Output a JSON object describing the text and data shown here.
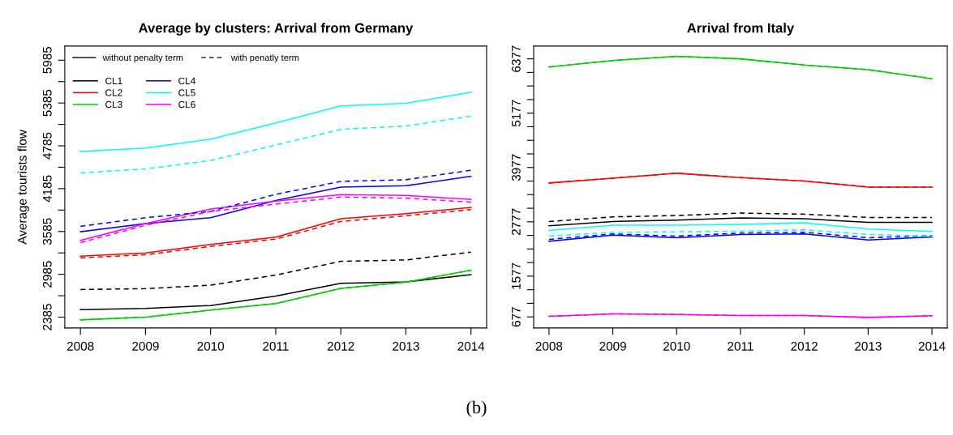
{
  "chart_data": [
    {
      "type": "line",
      "title": "Average by clusters: Arrival from Germany",
      "ylabel": "Average tourists flow",
      "x": [
        2008,
        2009,
        2010,
        2011,
        2012,
        2013,
        2014
      ],
      "xlim": [
        2007.76,
        2014.24
      ],
      "xticks": [
        2008,
        2009,
        2010,
        2011,
        2012,
        2013,
        2014
      ],
      "ylim": [
        2233,
        6182
      ],
      "yticks": [
        2385,
        {
          "value": 2685,
          "label": null
        },
        2985,
        {
          "value": 3285,
          "label": null
        },
        3585,
        {
          "value": 3885,
          "label": null
        },
        4185,
        {
          "value": 4485,
          "label": null
        },
        4785,
        {
          "value": 5085,
          "label": null
        },
        5385,
        {
          "value": 5685,
          "label": null
        },
        5985
      ],
      "grid": false,
      "legend": "top left",
      "marker": "none",
      "annotations": [
        "without penalty term",
        "with penatly term"
      ],
      "series": [
        {
          "name": "CL1",
          "color": "#000000",
          "line_style": "solid",
          "values": [
            2491,
            2506,
            2548,
            2681,
            2860,
            2879,
            2981
          ]
        },
        {
          "name": "CL2",
          "color": "#ff0000",
          "line_style": "solid",
          "values": [
            3239,
            3285,
            3403,
            3505,
            3763,
            3835,
            3923
          ]
        },
        {
          "name": "CL3",
          "color": "#00cd00",
          "line_style": "solid",
          "values": [
            2347,
            2385,
            2484,
            2575,
            2787,
            2875,
            3042
          ]
        },
        {
          "name": "CL4",
          "color": "#0000ff",
          "line_style": "solid",
          "values": [
            3581,
            3695,
            3778,
            4018,
            4207,
            4226,
            4359
          ]
        },
        {
          "name": "CL5",
          "color": "#00ffff",
          "line_style": "solid",
          "values": [
            4705,
            4754,
            4880,
            5107,
            5343,
            5381,
            5536
          ]
        },
        {
          "name": "CL6",
          "color": "#ff00ff",
          "line_style": "solid",
          "values": [
            3460,
            3695,
            3900,
            4010,
            4101,
            4090,
            4033
          ]
        },
        {
          "color": "#000000",
          "line_style": "dashed",
          "values": [
            2772,
            2784,
            2833,
            2974,
            3167,
            3186,
            3296
          ]
        },
        {
          "color": "#ff0000",
          "line_style": "dashed",
          "values": [
            3216,
            3258,
            3376,
            3479,
            3725,
            3805,
            3892
          ]
        },
        {
          "color": "#00cd00",
          "line_style": "dashed",
          "values": [
            2347,
            2385,
            2484,
            2575,
            2787,
            2875,
            3042
          ]
        },
        {
          "color": "#0000ff",
          "line_style": "dashed",
          "values": [
            3657,
            3778,
            3866,
            4105,
            4287,
            4310,
            4443
          ]
        },
        {
          "color": "#00ffff",
          "line_style": "dashed",
          "values": [
            4405,
            4462,
            4580,
            4796,
            5016,
            5062,
            5202
          ]
        },
        {
          "color": "#ff00ff",
          "line_style": "dashed",
          "values": [
            3429,
            3672,
            3866,
            3968,
            4067,
            4052,
            3995
          ]
        }
      ]
    },
    {
      "type": "line",
      "title": "Arrival from Italy",
      "x": [
        2008,
        2009,
        2010,
        2011,
        2012,
        2013,
        2014
      ],
      "xlim": [
        2007.76,
        2014.24
      ],
      "xticks": [
        2008,
        2009,
        2010,
        2011,
        2012,
        2013,
        2014
      ],
      "ylim": [
        432,
        6658
      ],
      "yticks": [
        677,
        {
          "value": 977,
          "label": null
        },
        {
          "value": 1277,
          "label": null
        },
        1577,
        {
          "value": 1877,
          "label": null
        },
        {
          "value": 2177,
          "label": null
        },
        {
          "value": 2477,
          "label": null
        },
        2777,
        {
          "value": 3077,
          "label": null
        },
        {
          "value": 3377,
          "label": null
        },
        {
          "value": 3677,
          "label": null
        },
        3977,
        {
          "value": 4277,
          "label": null
        },
        {
          "value": 4577,
          "label": null
        },
        {
          "value": 4877,
          "label": null
        },
        5177,
        {
          "value": 5477,
          "label": null
        },
        {
          "value": 5777,
          "label": null
        },
        {
          "value": 6077,
          "label": null
        },
        6377
      ],
      "grid": false,
      "marker": "none",
      "annotations": [
        "(b)"
      ],
      "series": [
        {
          "color": "#000000",
          "line_style": "solid",
          "values": [
            2689,
            2784,
            2814,
            2862,
            2844,
            2766,
            2766
          ]
        },
        {
          "color": "#ff0000",
          "line_style": "solid",
          "values": [
            3635,
            3742,
            3850,
            3754,
            3676,
            3545,
            3545
          ]
        },
        {
          "color": "#00cd00",
          "line_style": "solid",
          "values": [
            6197,
            6341,
            6431,
            6377,
            6239,
            6137,
            5940
          ]
        },
        {
          "color": "#0000ff",
          "line_style": "solid",
          "values": [
            2347,
            2485,
            2425,
            2497,
            2509,
            2377,
            2443
          ]
        },
        {
          "color": "#00ffff",
          "line_style": "solid",
          "values": [
            2587,
            2701,
            2701,
            2719,
            2754,
            2617,
            2563
          ]
        },
        {
          "color": "#ff00ff",
          "line_style": "solid",
          "values": [
            689,
            743,
            731,
            707,
            707,
            665,
            701
          ]
        },
        {
          "color": "#000000",
          "line_style": "dashed",
          "values": [
            2784,
            2886,
            2916,
            2970,
            2946,
            2874,
            2874
          ]
        },
        {
          "color": "#ff0000",
          "line_style": "dashed",
          "values": [
            3635,
            3742,
            3850,
            3754,
            3676,
            3545,
            3545
          ]
        },
        {
          "color": "#00cd00",
          "line_style": "dashed",
          "values": [
            6197,
            6341,
            6431,
            6377,
            6239,
            6137,
            5940
          ]
        },
        {
          "color": "#0000ff",
          "line_style": "dashed",
          "values": [
            2389,
            2509,
            2461,
            2527,
            2545,
            2425,
            2473
          ]
        },
        {
          "color": "#00ffff",
          "line_style": "dashed",
          "values": [
            2461,
            2545,
            2557,
            2569,
            2599,
            2497,
            2461
          ]
        },
        {
          "color": "#ff00ff",
          "line_style": "dashed",
          "values": [
            689,
            743,
            731,
            707,
            707,
            665,
            701
          ]
        }
      ]
    }
  ]
}
